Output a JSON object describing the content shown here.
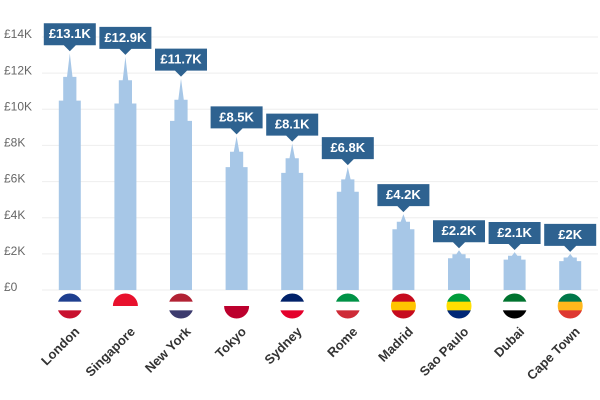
{
  "chart_data": {
    "type": "bar",
    "categories": [
      "London",
      "Singapore",
      "New York",
      "Tokyo",
      "Sydney",
      "Rome",
      "Madrid",
      "Sao Paulo",
      "Dubai",
      "Cape Town"
    ],
    "values": [
      13100,
      12900,
      11700,
      8500,
      8100,
      6800,
      4200,
      2200,
      2100,
      2000
    ],
    "value_labels": [
      "£13.1K",
      "£12.9K",
      "£11.7K",
      "£8.5K",
      "£8.1K",
      "£6.8K",
      "£4.2K",
      "£2.2K",
      "£2.1K",
      "£2K"
    ],
    "color": "#a7c7e7",
    "label_color": "#2e6290",
    "ylim": [
      0,
      14000
    ],
    "yticks": [
      {
        "value": 0,
        "label": "£0"
      },
      {
        "value": 2000,
        "label": "£2K"
      },
      {
        "value": 4000,
        "label": "£4K"
      },
      {
        "value": 6000,
        "label": "£6K"
      },
      {
        "value": 8000,
        "label": "£8K"
      },
      {
        "value": 10000,
        "label": "£10K"
      },
      {
        "value": 12000,
        "label": "£12K"
      },
      {
        "value": 14000,
        "label": "£14K"
      }
    ],
    "grid": true
  }
}
